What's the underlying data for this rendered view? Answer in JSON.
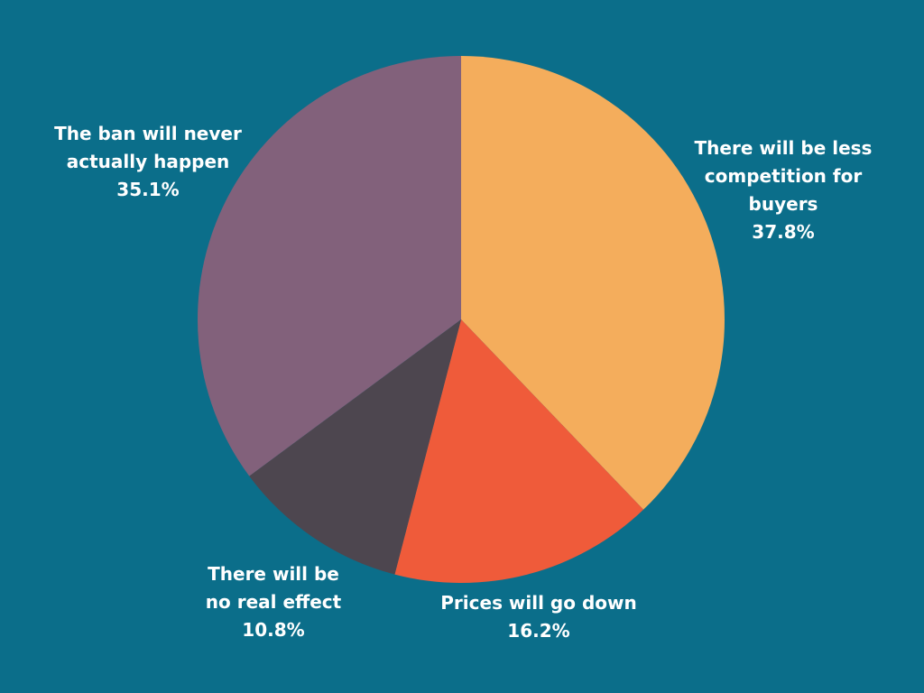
{
  "chart_data": {
    "type": "pie",
    "title": "",
    "start_angle_deg": 0,
    "direction": "clockwise",
    "slices": [
      {
        "label": "There will be less competition for buyers",
        "value": 37.8,
        "value_label": "37.8%",
        "color": "#f4ad5c"
      },
      {
        "label": "Prices will go down",
        "value": 16.2,
        "value_label": "16.2%",
        "color": "#ef5b3a"
      },
      {
        "label": "There will be no real effect",
        "value": 10.8,
        "value_label": "10.8%",
        "color": "#4d464f"
      },
      {
        "label": "The ban will never actually happen",
        "value": 35.1,
        "value_label": "35.1%",
        "color": "#82617b"
      }
    ]
  },
  "colors": {
    "background": "#0b6e8a",
    "label_text": "#ffffff"
  }
}
